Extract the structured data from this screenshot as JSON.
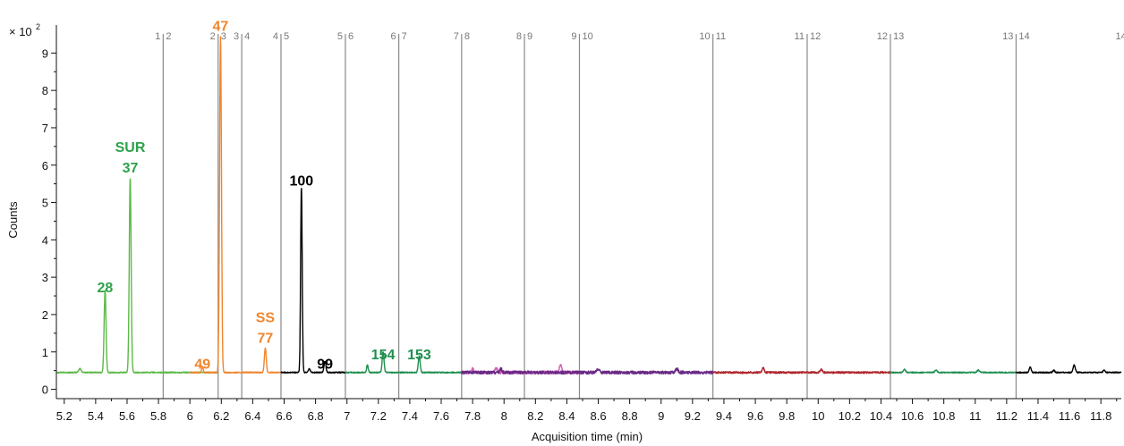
{
  "chart_data": {
    "type": "line",
    "xlabel": "Acquisition time (min)",
    "ylabel": "Counts",
    "y_multiplier": "× 10",
    "y_multiplier_exp": "2",
    "xlim": [
      5.15,
      11.93
    ],
    "ylim": [
      -0.25,
      9.75
    ],
    "x_ticks": [
      5.2,
      5.4,
      5.6,
      5.8,
      6,
      6.2,
      6.4,
      6.6,
      6.8,
      7,
      7.2,
      7.4,
      7.6,
      7.8,
      8,
      8.2,
      8.4,
      8.6,
      8.8,
      9,
      9.2,
      9.4,
      9.6,
      9.8,
      10,
      10.2,
      10.4,
      10.6,
      10.8,
      11,
      11.2,
      11.4,
      11.6,
      11.8
    ],
    "x_tick_labels": [
      "5.2",
      "5.4",
      "5.6",
      "5.8",
      "6",
      "6.2",
      "6.4",
      "6.6",
      "6.8",
      "7",
      "7.2",
      "7.4",
      "7.6",
      "7.8",
      "8",
      "8.2",
      "8.4",
      "8.6",
      "8.8",
      "9",
      "9.2",
      "9.4",
      "9.6",
      "9.8",
      "10",
      "10.2",
      "10.4",
      "10.6",
      "10.8",
      "11",
      "11.2",
      "11.4",
      "11.6",
      "11.8"
    ],
    "y_ticks": [
      0,
      1,
      2,
      3,
      4,
      5,
      6,
      7,
      8,
      9
    ],
    "y_tick_labels": [
      "0",
      "1",
      "2",
      "3",
      "4",
      "5",
      "6",
      "7",
      "8",
      "9"
    ],
    "baseline": 0.45,
    "segment_boundaries": [
      {
        "x": 5.83,
        "left": "1",
        "right": "2"
      },
      {
        "x": 6.18,
        "left": "2",
        "right": "3"
      },
      {
        "x": 6.33,
        "left": "3",
        "right": "4"
      },
      {
        "x": 6.58,
        "left": "4",
        "right": "5"
      },
      {
        "x": 6.99,
        "left": "5",
        "right": "6"
      },
      {
        "x": 7.33,
        "left": "6",
        "right": "7"
      },
      {
        "x": 7.73,
        "left": "7",
        "right": "8"
      },
      {
        "x": 8.13,
        "left": "8",
        "right": "9"
      },
      {
        "x": 8.48,
        "left": "9",
        "right": "10"
      },
      {
        "x": 9.33,
        "left": "10",
        "right": "11"
      },
      {
        "x": 9.93,
        "left": "11",
        "right": "12"
      },
      {
        "x": 10.46,
        "left": "12",
        "right": "13"
      },
      {
        "x": 11.26,
        "left": "13",
        "right": "14"
      },
      {
        "x": 11.98,
        "left": "14",
        "right": ""
      }
    ],
    "series": [
      {
        "color": "#5cb947",
        "x_start": 5.15,
        "x_end": 6.18,
        "peaks": [
          {
            "x": 5.3,
            "h": 0.1,
            "w": 0.008
          },
          {
            "x": 5.46,
            "h": 2.2,
            "w": 0.006
          },
          {
            "x": 5.62,
            "h": 5.2,
            "w": 0.006
          }
        ],
        "noise": 0.015
      },
      {
        "color": "#f0852d",
        "x_start": 6.0,
        "x_end": 6.58,
        "peaks": [
          {
            "x": 6.08,
            "h": 0.15,
            "w": 0.005
          },
          {
            "x": 6.195,
            "h": 9.0,
            "w": 0.006
          },
          {
            "x": 6.48,
            "h": 0.65,
            "w": 0.006
          }
        ],
        "noise": 0.015
      },
      {
        "color": "#000000",
        "x_start": 6.58,
        "x_end": 6.99,
        "peaks": [
          {
            "x": 6.71,
            "h": 4.95,
            "w": 0.005
          },
          {
            "x": 6.76,
            "h": 0.1,
            "w": 0.006
          },
          {
            "x": 6.86,
            "h": 0.3,
            "w": 0.006
          }
        ],
        "noise": 0.015
      },
      {
        "color": "#1f8f4e",
        "x_start": 6.99,
        "x_end": 7.73,
        "peaks": [
          {
            "x": 7.13,
            "h": 0.2,
            "w": 0.005
          },
          {
            "x": 7.23,
            "h": 0.55,
            "w": 0.006
          },
          {
            "x": 7.46,
            "h": 0.45,
            "w": 0.006
          }
        ],
        "noise": 0.015
      },
      {
        "color": "#d55fb5",
        "x_start": 7.73,
        "x_end": 8.48,
        "peaks": [
          {
            "x": 7.8,
            "h": 0.1,
            "w": 0.006
          },
          {
            "x": 7.95,
            "h": 0.12,
            "w": 0.008
          },
          {
            "x": 8.36,
            "h": 0.22,
            "w": 0.007
          }
        ],
        "noise": 0.04
      },
      {
        "color": "#6a2a86",
        "x_start": 7.73,
        "x_end": 9.33,
        "peaks": [
          {
            "x": 7.98,
            "h": 0.1,
            "w": 0.007
          },
          {
            "x": 8.6,
            "h": 0.1,
            "w": 0.008
          },
          {
            "x": 9.1,
            "h": 0.1,
            "w": 0.008
          }
        ],
        "noise": 0.04
      },
      {
        "color": "#b0262c",
        "x_start": 9.33,
        "x_end": 10.46,
        "peaks": [
          {
            "x": 9.65,
            "h": 0.12,
            "w": 0.007
          },
          {
            "x": 10.02,
            "h": 0.08,
            "w": 0.007
          }
        ],
        "noise": 0.025
      },
      {
        "color": "#1f8f4e",
        "x_start": 10.46,
        "x_end": 11.26,
        "peaks": [
          {
            "x": 10.55,
            "h": 0.08,
            "w": 0.007
          },
          {
            "x": 10.75,
            "h": 0.07,
            "w": 0.007
          },
          {
            "x": 11.02,
            "h": 0.06,
            "w": 0.008
          }
        ],
        "noise": 0.015
      },
      {
        "color": "#000000",
        "x_start": 11.26,
        "x_end": 11.93,
        "peaks": [
          {
            "x": 11.35,
            "h": 0.15,
            "w": 0.006
          },
          {
            "x": 11.5,
            "h": 0.06,
            "w": 0.006
          },
          {
            "x": 11.63,
            "h": 0.2,
            "w": 0.007
          },
          {
            "x": 11.82,
            "h": 0.06,
            "w": 0.006
          }
        ],
        "noise": 0.015
      }
    ],
    "annotations": [
      {
        "text": "SUR",
        "x": 5.62,
        "y": 6.35,
        "color": "#2ea24a"
      },
      {
        "text": "37",
        "x": 5.62,
        "y": 5.8,
        "color": "#2ea24a"
      },
      {
        "text": "28",
        "x": 5.46,
        "y": 2.6,
        "color": "#2ea24a"
      },
      {
        "text": "47",
        "x": 6.195,
        "y": 9.6,
        "color": "#f0852d"
      },
      {
        "text": "49",
        "x": 6.08,
        "y": 0.55,
        "color": "#f0852d"
      },
      {
        "text": "SS",
        "x": 6.48,
        "y": 1.8,
        "color": "#f0852d"
      },
      {
        "text": "77",
        "x": 6.48,
        "y": 1.25,
        "color": "#f0852d"
      },
      {
        "text": "100",
        "x": 6.71,
        "y": 5.45,
        "color": "#000000"
      },
      {
        "text": "99",
        "x": 6.86,
        "y": 0.55,
        "color": "#000000"
      },
      {
        "text": "154",
        "x": 7.23,
        "y": 0.8,
        "color": "#1f8f4e"
      },
      {
        "text": "153",
        "x": 7.46,
        "y": 0.8,
        "color": "#1f8f4e"
      }
    ]
  }
}
